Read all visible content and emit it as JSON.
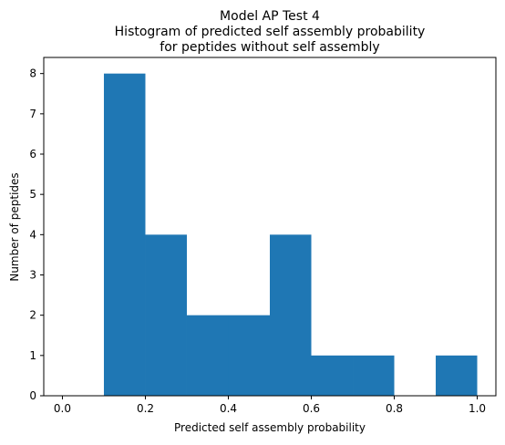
{
  "chart_data": {
    "type": "bar",
    "title": [
      "Model AP Test 4",
      "Histogram of predicted self assembly probability",
      "for peptides without self assembly"
    ],
    "xlabel": "Predicted self assembly probability",
    "ylabel": "Number of peptides",
    "bins": [
      {
        "x0": 0.1,
        "x1": 0.2,
        "count": 8
      },
      {
        "x0": 0.2,
        "x1": 0.3,
        "count": 4
      },
      {
        "x0": 0.3,
        "x1": 0.4,
        "count": 2
      },
      {
        "x0": 0.4,
        "x1": 0.5,
        "count": 2
      },
      {
        "x0": 0.5,
        "x1": 0.6,
        "count": 4
      },
      {
        "x0": 0.6,
        "x1": 0.7,
        "count": 1
      },
      {
        "x0": 0.7,
        "x1": 0.8,
        "count": 1
      },
      {
        "x0": 0.8,
        "x1": 0.9,
        "count": 0
      },
      {
        "x0": 0.9,
        "x1": 1.0,
        "count": 1
      }
    ],
    "xlim": [
      -0.045,
      1.045
    ],
    "ylim": [
      0,
      8.4
    ],
    "xticks": [
      "0.0",
      "0.2",
      "0.4",
      "0.6",
      "0.8",
      "1.0"
    ],
    "yticks": [
      "0",
      "1",
      "2",
      "3",
      "4",
      "5",
      "6",
      "7",
      "8"
    ],
    "bar_color": "#1f77b4",
    "grid": false,
    "legend": "none"
  }
}
